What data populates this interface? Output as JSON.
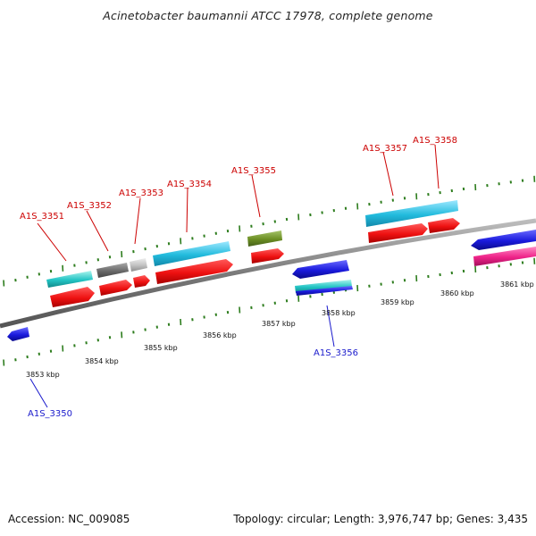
{
  "title": "Acinetobacter baumannii ATCC 17978, complete genome",
  "footer": {
    "accession": "Accession: NC_009085",
    "summary": "Topology: circular; Length: 3,976,747 bp; Genes: 3,435"
  },
  "colors": {
    "background": "#ffffff",
    "backbone": "#7a7a7a",
    "tick_marks": "#2e7d1e",
    "label_forward": "#cc0000",
    "label_reverse": "#1a1acc",
    "red": "#ee1111",
    "cyan": "#22bbdd",
    "teal": "#22c4c4",
    "dark_gray": "#6a6a6a",
    "light_gray": "#c0c0c0",
    "olive": "#6b8e23",
    "blue": "#1a1add",
    "magenta": "#ee2288"
  },
  "scale_labels": [
    "3853 kbp",
    "3854 kbp",
    "3855 kbp",
    "3856 kbp",
    "3857 kbp",
    "3858 kbp",
    "3859 kbp",
    "3860 kbp",
    "3861 kbp"
  ],
  "gene_labels_forward": [
    "A1S_3351",
    "A1S_3352",
    "A1S_3353",
    "A1S_3354",
    "A1S_3355",
    "A1S_3357",
    "A1S_3358"
  ],
  "gene_labels_reverse": [
    "A1S_3350",
    "A1S_3356"
  ]
}
